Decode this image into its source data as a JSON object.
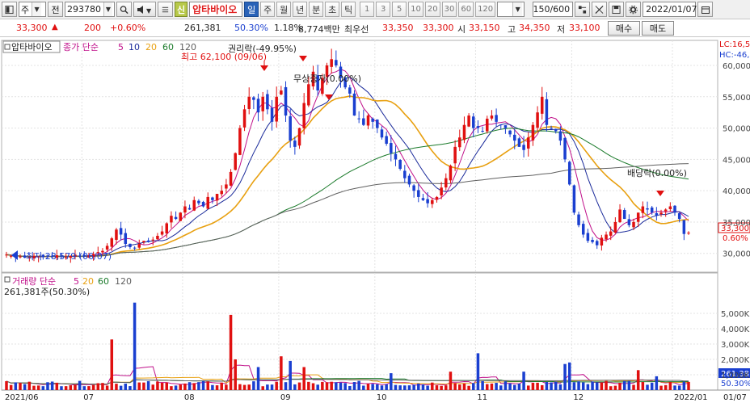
{
  "toolbar": {
    "menu_icon": "panel-icon",
    "market_select": "주",
    "type_label": "전",
    "code_value": "293780",
    "stock_badge": "신",
    "stock_name": "압타바이오",
    "periods": [
      "일",
      "주",
      "월",
      "년",
      "분",
      "초",
      "틱"
    ],
    "active_period": "일",
    "numbers": [
      "1",
      "3",
      "5",
      "10",
      "20",
      "30",
      "60",
      "120"
    ],
    "count_value": "150/600",
    "date_value": "2022/01/07"
  },
  "quote": {
    "price": "33,300",
    "arrow": "▲",
    "change": "200",
    "change_pct": "+0.60%",
    "volume": "261,381",
    "vol_ratio": "50.30%",
    "turnover": "1.18%",
    "amount": "8,774백만",
    "best_label": "최우선",
    "best_ask": "33,350",
    "best_bid": "33,300",
    "open_label": "시",
    "open": "33,150",
    "high_label": "고",
    "high": "34,350",
    "low_label": "저",
    "low": "33,100",
    "buy_label": "매수",
    "sell_label": "매도"
  },
  "price_panel": {
    "name_tag": "압타바이오",
    "ma_label": "종가 단순",
    "ma_periods": [
      "5",
      "10",
      "20",
      "60",
      "120"
    ],
    "ma_colors": [
      "#c0108a",
      "#1a2a9a",
      "#e8a010",
      "#1a7a2a",
      "#606060"
    ],
    "annotations": {
      "rights": "권리락(-49.95%)",
      "high": "최고 62,100 (09/06)",
      "free_issue": "무상증자(0.00%)",
      "dividend": "배당락(0.00%)",
      "low": "최저 28,579 (06/07)"
    },
    "lc": "LC:16,5",
    "hc": "HC:-46,",
    "last_price_tag": "33,300",
    "last_pct_tag": "0.60%",
    "y_ticks": [
      "60,000",
      "55,000",
      "50,000",
      "45,000",
      "40,000",
      "35,000",
      "30,000"
    ]
  },
  "volume_panel": {
    "label": "거래량 단순",
    "ma_periods": [
      "5",
      "20",
      "60",
      "120"
    ],
    "info": "261,381주(50.30%)",
    "y_ticks": [
      "5,000K",
      "4,000K",
      "3,000K",
      "2,000K",
      "1,000K"
    ],
    "last_tag": "261,38",
    "last_pct": "50.30%"
  },
  "x_axis": {
    "labels": [
      "2021/06",
      "07",
      "08",
      "09",
      "10",
      "11",
      "12",
      "2022/01"
    ],
    "right_label": "01/07"
  },
  "chart_data": {
    "type": "candlestick",
    "title": "",
    "ylim": [
      27000,
      64000
    ],
    "closes": [
      29800,
      29600,
      29400,
      29500,
      29300,
      29400,
      29600,
      29500,
      29400,
      29600,
      29500,
      29700,
      29500,
      29400,
      29600,
      29800,
      29600,
      29500,
      29700,
      29900,
      30200,
      30400,
      31200,
      32400,
      33800,
      33000,
      31500,
      31000,
      30800,
      31500,
      32000,
      31800,
      32200,
      32800,
      33500,
      34800,
      36000,
      35500,
      36500,
      37500,
      37000,
      38500,
      38000,
      37500,
      39000,
      38500,
      39500,
      40000,
      41000,
      43000,
      46000,
      50000,
      53000,
      55000,
      54500,
      52500,
      55000,
      53000,
      51000,
      55000,
      56000,
      52000,
      48000,
      47000,
      50000,
      54000,
      57000,
      59000,
      56000,
      58000,
      60000,
      61000,
      60000,
      58000,
      56500,
      55500,
      52000,
      51500,
      50500,
      52000,
      51000,
      50000,
      48500,
      47500,
      46000,
      45000,
      43500,
      42000,
      41000,
      40000,
      39000,
      38500,
      38000,
      38500,
      39000,
      40500,
      42000,
      44000,
      47000,
      48500,
      50500,
      52000,
      50000,
      50000,
      49500,
      51500,
      52000,
      51000,
      50500,
      50000,
      49000,
      48000,
      47000,
      46500,
      48500,
      50500,
      52500,
      55000,
      50500,
      50000,
      49500,
      48000,
      45000,
      41000,
      36500,
      34500,
      33000,
      32000,
      31800,
      31300,
      32500,
      33000,
      33500,
      35000,
      37000,
      35500,
      34500,
      35000,
      36500,
      37500,
      37000,
      36500,
      36000,
      36500,
      37000,
      37500,
      36500,
      35500,
      33100,
      33300
    ]
  }
}
